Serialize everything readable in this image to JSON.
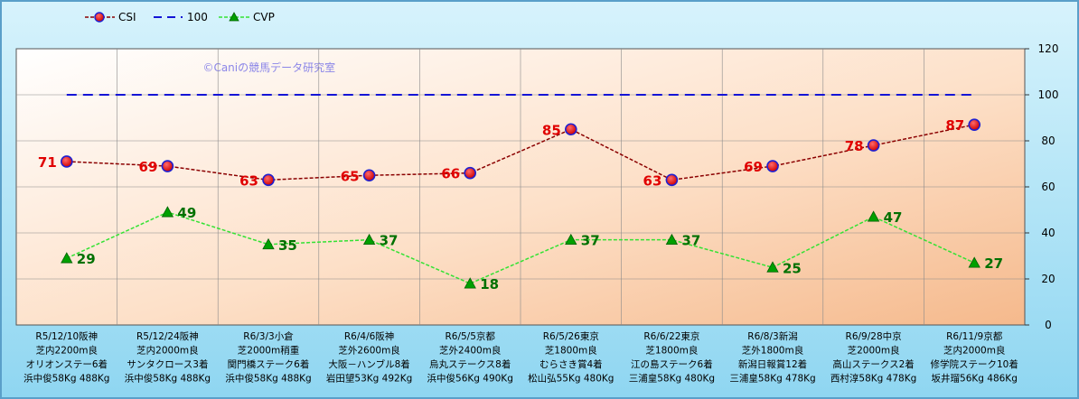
{
  "chart_data": {
    "type": "line",
    "watermark": "©Caniの競馬データ研究室",
    "categories": [
      [
        "R5/12/10阪神",
        "芝内2200m良",
        "オリオンステー6着",
        "浜中俊58Kg 488Kg"
      ],
      [
        "R5/12/24阪神",
        "芝内2000m良",
        "サンタクロース3着",
        "浜中俊58Kg 488Kg"
      ],
      [
        "R6/3/3小倉",
        "芝2000m稍重",
        "関門橋ステーク6着",
        "浜中俊58Kg 488Kg"
      ],
      [
        "R6/4/6阪神",
        "芝外2600m良",
        "大阪－ハンブル8着",
        "岩田望53Kg 492Kg"
      ],
      [
        "R6/5/5京都",
        "芝外2400m良",
        "烏丸ステークス8着",
        "浜中俊56Kg 490Kg"
      ],
      [
        "R6/5/26東京",
        "芝1800m良",
        "むらさき賞4着",
        "松山弘55Kg 480Kg"
      ],
      [
        "R6/6/22東京",
        "芝1800m良",
        "江の島ステーク6着",
        "三浦皇58Kg 480Kg"
      ],
      [
        "R6/8/3新潟",
        "芝外1800m良",
        "新潟日報賞12着",
        "三浦皇58Kg 478Kg"
      ],
      [
        "R6/9/28中京",
        "芝2000m良",
        "高山ステークス2着",
        "西村淳58Kg 478Kg"
      ],
      [
        "R6/11/9京都",
        "芝内2000m良",
        "修学院ステーク10着",
        "坂井瑠56Kg 486Kg"
      ]
    ],
    "series": [
      {
        "name": "CSI",
        "values": [
          71,
          69,
          63,
          65,
          66,
          85,
          63,
          69,
          78,
          87
        ],
        "color": "#8b0000",
        "marker": "#e00000",
        "label_color": "#e00000"
      },
      {
        "name": "100",
        "values": [
          100,
          100,
          100,
          100,
          100,
          100,
          100,
          100,
          100,
          100
        ],
        "color": "#1414d6"
      },
      {
        "name": "CVP",
        "values": [
          29,
          49,
          35,
          37,
          18,
          37,
          37,
          25,
          47,
          27
        ],
        "color": "#33e233",
        "marker": "#00a000",
        "label_color": "#007000"
      }
    ],
    "ylim": [
      0,
      120
    ],
    "yticks": [
      0,
      20,
      40,
      60,
      80,
      100,
      120
    ],
    "y_axis_side": "right",
    "grid": true,
    "legend_position": "top-left"
  }
}
